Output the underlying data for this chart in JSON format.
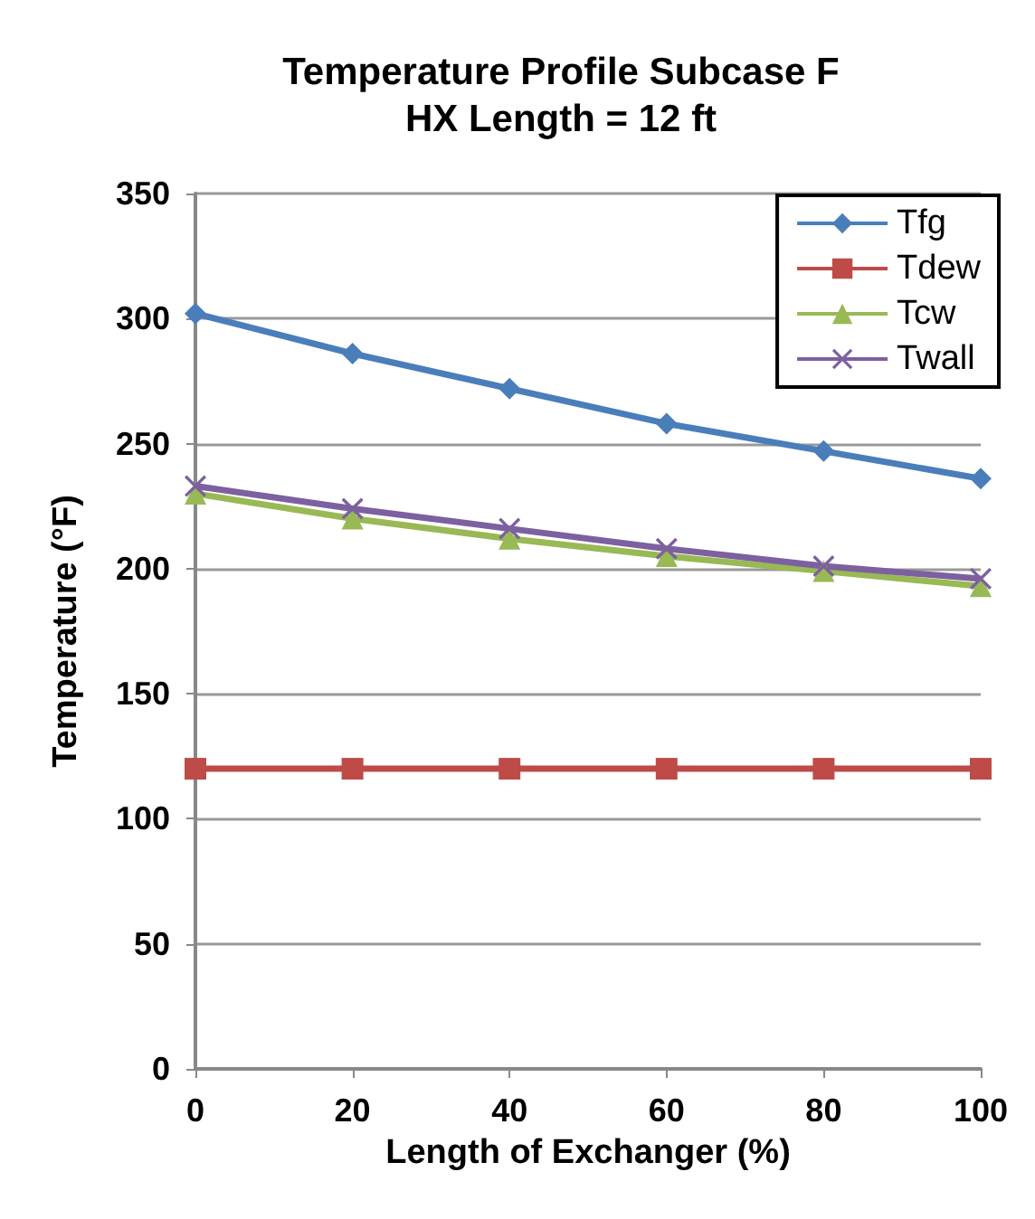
{
  "chart_data": {
    "type": "line",
    "title": "Temperature Profile Subcase F\nHX Length = 12 ft",
    "xlabel": "Length of Exchanger (%)",
    "ylabel": "Temperature (°F)",
    "x": [
      0,
      20,
      40,
      60,
      80,
      100
    ],
    "series": [
      {
        "name": "Tfg",
        "color": "#4a7ebb",
        "marker": "diamond",
        "values": [
          302,
          286,
          272,
          258,
          247,
          236
        ]
      },
      {
        "name": "Tdew",
        "color": "#be4b48",
        "marker": "square",
        "values": [
          120,
          120,
          120,
          120,
          120,
          120
        ]
      },
      {
        "name": "Tcw",
        "color": "#98b954",
        "marker": "triangle",
        "values": [
          230,
          220,
          212,
          205,
          199,
          193
        ]
      },
      {
        "name": "Twall",
        "color": "#7d60a0",
        "marker": "cross",
        "values": [
          233,
          224,
          216,
          208,
          201,
          196
        ]
      }
    ],
    "xlim": [
      0,
      100
    ],
    "xticks": [
      0,
      20,
      40,
      60,
      80,
      100
    ],
    "ylim": [
      0,
      350
    ],
    "yticks": [
      0,
      50,
      100,
      150,
      200,
      250,
      300,
      350
    ],
    "grid": "y",
    "legend": "top right",
    "line_style": "solid"
  }
}
